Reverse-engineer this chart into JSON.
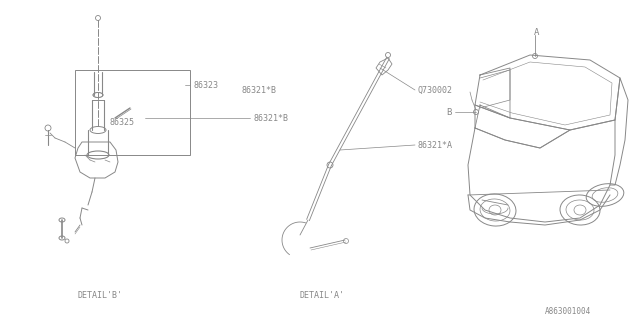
{
  "bg_color": "#ffffff",
  "lc": "#888888",
  "lc_dark": "#666666",
  "tc": "#888888",
  "fig_width": 6.4,
  "fig_height": 3.2,
  "dpi": 100,
  "labels": {
    "86323": "86323",
    "86325": "86325",
    "86321B": "86321*B",
    "Q730002": "Q730002",
    "86321A": "86321*A",
    "DETAIL_B": "DETAIL'B'",
    "DETAIL_A": "DETAIL'A'",
    "ref_code": "A863001004",
    "A_label": "A",
    "B_label": "B"
  }
}
